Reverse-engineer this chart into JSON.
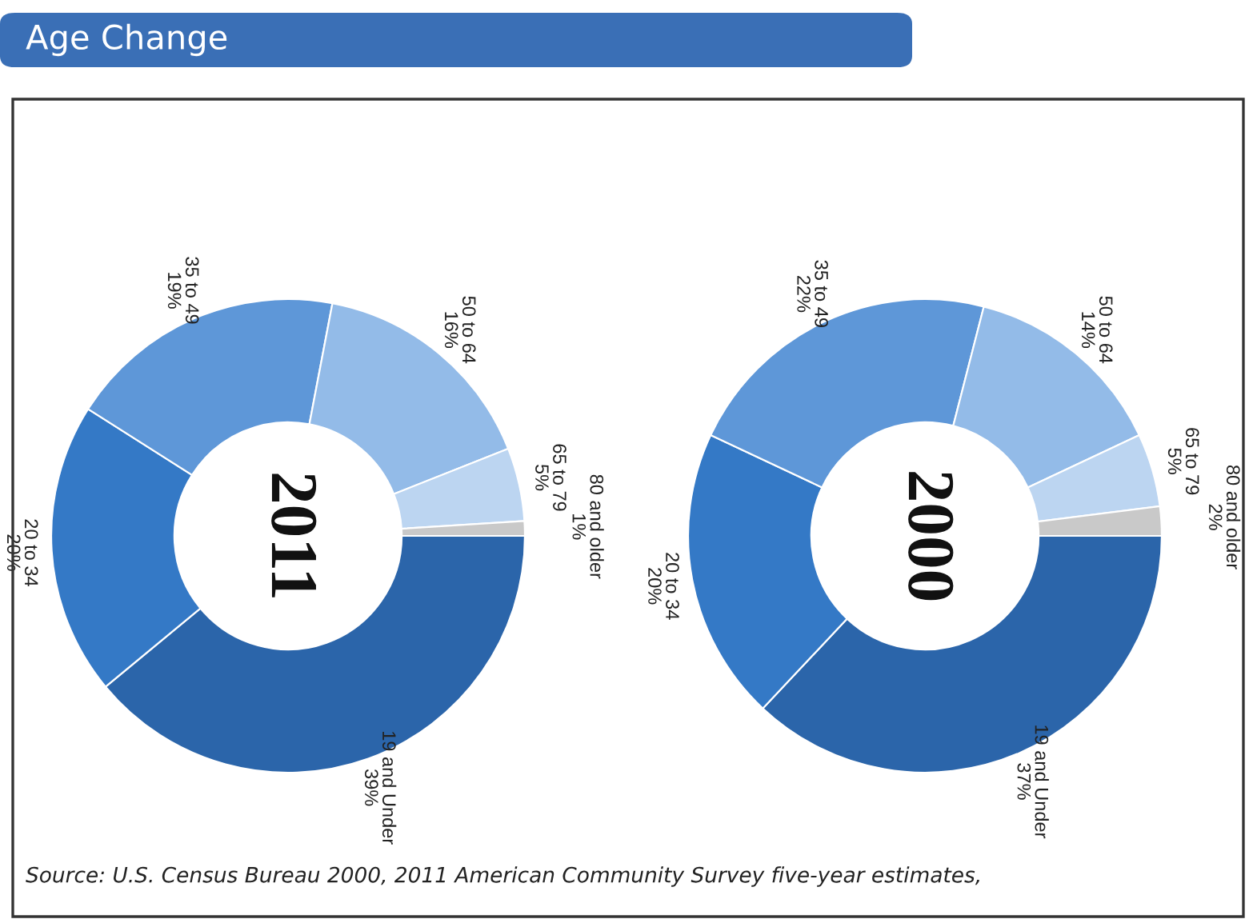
{
  "chart_data": [
    {
      "type": "donut",
      "title": "2011",
      "categories": [
        "19 and Under",
        "20 to 34",
        "35 to 49",
        "50 to 64",
        "65 to 79",
        "80 and older"
      ],
      "values": [
        39,
        20,
        19,
        16,
        5,
        1
      ],
      "value_labels": [
        "39%",
        "20%",
        "19%",
        "16%",
        "5%",
        "1%"
      ],
      "colors": [
        "#2b65aa",
        "#3479c6",
        "#5e97d8",
        "#93bbe8",
        "#bcd5f1",
        "#c9c9c9"
      ],
      "annotations": [
        "Age Change",
        "Source: U.S. Census Bureau 2000, 2011 American Community Survey five-year estimates,"
      ]
    },
    {
      "type": "donut",
      "title": "2000",
      "categories": [
        "19 and Under",
        "20 to 34",
        "35 to 49",
        "50 to 64",
        "65 to 79",
        "80 and older"
      ],
      "values": [
        37,
        20,
        22,
        14,
        5,
        2
      ],
      "value_labels": [
        "37%",
        "20%",
        "22%",
        "14%",
        "5%",
        "2%"
      ],
      "colors": [
        "#2b65aa",
        "#3479c6",
        "#5e97d8",
        "#93bbe8",
        "#bcd5f1",
        "#c9c9c9"
      ]
    }
  ]
}
